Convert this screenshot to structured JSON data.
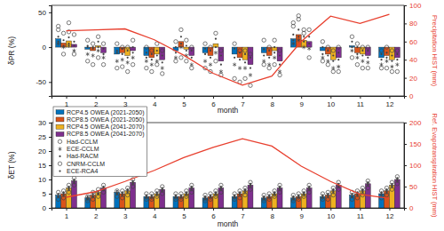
{
  "chart_data": [
    {
      "type": "bar",
      "x": [
        1,
        2,
        3,
        4,
        5,
        6,
        7,
        8,
        9,
        10,
        11,
        12
      ],
      "xlim": [
        0.5,
        12.5
      ],
      "xticks": [
        1,
        2,
        3,
        4,
        5,
        6,
        7,
        8,
        9,
        10,
        11,
        12
      ],
      "x_label": "month",
      "y_label": "δPR (%)",
      "ylim": [
        -70,
        60
      ],
      "yticks": [
        -50,
        0,
        50
      ],
      "y2_label": "Precipitation HIST (mm)",
      "y2lim": [
        0,
        100
      ],
      "y2ticks": [
        0,
        20,
        40,
        60,
        80,
        100
      ],
      "series": [
        {
          "type": "bar",
          "color": "#0072bd",
          "values": [
            12,
            -3,
            -10,
            -12,
            -5,
            -8,
            -10,
            -8,
            12,
            -5,
            2,
            -15
          ]
        },
        {
          "type": "bar",
          "color": "#d95319",
          "values": [
            6,
            -5,
            -8,
            -15,
            8,
            -12,
            -15,
            -12,
            18,
            -10,
            -8,
            -12
          ]
        },
        {
          "type": "bar",
          "color": "#edb120",
          "values": [
            9,
            2,
            -12,
            -10,
            -3,
            5,
            -18,
            -5,
            10,
            -18,
            -10,
            -18
          ]
        },
        {
          "type": "bar",
          "color": "#7e2f8e",
          "values": [
            4,
            -8,
            -5,
            -18,
            -12,
            -20,
            -25,
            -20,
            8,
            -15,
            -12,
            -15
          ]
        },
        {
          "type": "scatter",
          "marker": "circle",
          "color": "#444444",
          "values": [
            [
              25,
              10,
              5,
              0,
              8,
              5,
              5,
              10,
              30,
              8,
              15,
              -5
            ],
            [
              20,
              5,
              0,
              -5,
              25,
              0,
              -5,
              0,
              40,
              0,
              5,
              0
            ],
            [
              22,
              15,
              0,
              5,
              10,
              20,
              -5,
              10,
              25,
              -5,
              0,
              -5
            ],
            [
              18,
              5,
              10,
              -5,
              0,
              -5,
              -10,
              -5,
              25,
              0,
              0,
              -5
            ]
          ]
        },
        {
          "type": "scatter",
          "marker": "asterisk",
          "color": "#444444",
          "values": [
            [
              5,
              -10,
              -20,
              -20,
              -15,
              -20,
              -25,
              -20,
              5,
              -15,
              -5,
              -25
            ],
            [
              0,
              -12,
              -18,
              -25,
              0,
              -25,
              -30,
              -25,
              10,
              -20,
              -15,
              -20
            ],
            [
              2,
              -5,
              -22,
              -20,
              -12,
              -8,
              -30,
              -15,
              0,
              -30,
              -20,
              -28
            ],
            [
              -5,
              -15,
              -15,
              -30,
              -25,
              -35,
              -40,
              -35,
              -2,
              -28,
              -22,
              -25
            ]
          ]
        },
        {
          "type": "scatter",
          "marker": "point",
          "color": "#444444",
          "values": [
            [
              15,
              0,
              -5,
              -8,
              0,
              -2,
              -2,
              -3,
              18,
              0,
              8,
              -10
            ],
            [
              10,
              0,
              -2,
              -10,
              15,
              -5,
              -8,
              -5,
              25,
              -5,
              0,
              -8
            ],
            [
              14,
              8,
              -5,
              -5,
              2,
              12,
              -10,
              0,
              15,
              -12,
              -5,
              -12
            ],
            [
              8,
              -2,
              0,
              -12,
              -5,
              -12,
              -15,
              -12,
              15,
              -8,
              -5,
              -10
            ]
          ]
        },
        {
          "type": "scatter",
          "marker": "circle",
          "color": "#444444",
          "values": [
            [
              30,
              -20,
              -30,
              -30,
              -20,
              -30,
              -45,
              -25,
              35,
              -20,
              -15,
              -30
            ],
            [
              -10,
              -25,
              -28,
              -35,
              -15,
              -35,
              -50,
              -30,
              45,
              -25,
              -25,
              -30
            ],
            [
              35,
              -15,
              -35,
              -25,
              -20,
              -20,
              -45,
              -25,
              20,
              -35,
              -30,
              -35
            ],
            [
              -10,
              -25,
              -25,
              -38,
              -30,
              -40,
              -55,
              -40,
              -15,
              -35,
              -30,
              -35
            ]
          ]
        },
        {
          "type": "scatter",
          "marker": "point",
          "color": "#444444",
          "values": [
            [
              8,
              2,
              -8,
              -15,
              -8,
              -10,
              -15,
              -12,
              10,
              -10,
              0,
              -18
            ],
            [
              2,
              -2,
              -10,
              -18,
              5,
              -15,
              -18,
              -15,
              15,
              -12,
              -10,
              -15
            ],
            [
              5,
              0,
              -15,
              -12,
              -5,
              0,
              -22,
              -8,
              8,
              -20,
              -12,
              -20
            ],
            [
              2,
              -10,
              -8,
              -22,
              -15,
              -25,
              -30,
              -25,
              5,
              -18,
              -15,
              -18
            ]
          ]
        },
        {
          "type": "line",
          "axis": "y2",
          "color": "#e8402f",
          "line_style": "solid",
          "values": [
            72,
            73,
            74,
            62,
            45,
            25,
            12,
            22,
            60,
            88,
            80,
            90
          ]
        }
      ]
    },
    {
      "type": "bar",
      "x": [
        1,
        2,
        3,
        4,
        5,
        6,
        7,
        8,
        9,
        10,
        11,
        12
      ],
      "xlim": [
        0.5,
        12.5
      ],
      "xticks": [
        1,
        2,
        3,
        4,
        5,
        6,
        7,
        8,
        9,
        10,
        11,
        12
      ],
      "x_label": "month",
      "y_label": "δET (%)",
      "ylim": [
        0,
        30
      ],
      "yticks": [
        0,
        5,
        10,
        15,
        20,
        25,
        30
      ],
      "y2_label": "Ref. Evapotranspiration HIST (mm)",
      "y2lim": [
        0,
        200
      ],
      "y2ticks": [
        0,
        50,
        100,
        150,
        200
      ],
      "legend": "upper left",
      "series": [
        {
          "name": "RCP4.5 OWEA (2021-2050)",
          "type": "bar",
          "color": "#0072bd",
          "values": [
            4.5,
            3.5,
            5.5,
            4,
            4,
            3.5,
            4,
            3.5,
            3.5,
            4,
            4.5,
            5
          ]
        },
        {
          "name": "RCP8.5 OWEA (2021-2050)",
          "type": "bar",
          "color": "#d95319",
          "values": [
            5,
            4.5,
            5,
            4,
            4,
            4,
            5,
            4,
            4,
            4.5,
            5,
            6
          ]
        },
        {
          "name": "RCP4.5 OWEA (2041-2070)",
          "type": "bar",
          "color": "#edb120",
          "values": [
            7,
            5.5,
            6,
            5,
            5,
            5,
            6,
            5,
            5,
            6,
            6,
            8
          ]
        },
        {
          "name": "RCP8.5 OWEA (2041-2070)",
          "type": "bar",
          "color": "#7e2f8e",
          "values": [
            9.5,
            7,
            9,
            6.5,
            7,
            7,
            8,
            7,
            7,
            8,
            8.5,
            10
          ]
        },
        {
          "name": "Had-CCLM",
          "type": "scatter",
          "marker": "circle",
          "color": "#444444",
          "values": [
            [
              5.5,
              4,
              6,
              5,
              5,
              4.5,
              5,
              4.5,
              4.5,
              5,
              5.5,
              6
            ],
            [
              6,
              5.5,
              6,
              5,
              5,
              5,
              6,
              5,
              5,
              5.5,
              6,
              7
            ],
            [
              8,
              6.5,
              7,
              6,
              6,
              6,
              7,
              6,
              6,
              7,
              7,
              9
            ],
            [
              10.5,
              8,
              10,
              7.5,
              8,
              8,
              9,
              8,
              8,
              9,
              9.5,
              11
            ]
          ]
        },
        {
          "name": "ECE-CCLM",
          "type": "scatter",
          "marker": "asterisk",
          "color": "#444444",
          "values": [
            [
              4,
              3,
              5,
              3.5,
              3.5,
              3,
              3.5,
              3,
              3,
              3.5,
              4,
              4.5
            ],
            [
              4.5,
              4,
              4.5,
              3.5,
              3.5,
              3.5,
              4.5,
              3.5,
              3.5,
              4,
              4.5,
              5.5
            ],
            [
              6.5,
              5,
              5.5,
              4.5,
              4.5,
              4.5,
              5.5,
              4.5,
              4.5,
              5.5,
              5.5,
              7.5
            ],
            [
              9,
              6.5,
              8.5,
              6,
              6.5,
              6.5,
              7.5,
              6.5,
              6.5,
              7.5,
              8,
              9.5
            ]
          ]
        },
        {
          "name": "Had-RACM",
          "type": "scatter",
          "marker": "point",
          "color": "#444444",
          "values": [
            [
              5,
              4,
              6,
              4.5,
              4.5,
              4,
              4.5,
              4,
              4,
              4.5,
              5,
              5.5
            ],
            [
              5.5,
              5,
              5.5,
              4.5,
              4.5,
              4.5,
              5.5,
              4.5,
              4.5,
              5,
              5.5,
              6.5
            ],
            [
              7.5,
              6,
              6.5,
              5.5,
              5.5,
              5.5,
              6.5,
              5.5,
              5.5,
              6.5,
              6.5,
              8.5
            ],
            [
              10,
              7.5,
              9.5,
              7,
              7.5,
              7.5,
              8.5,
              7.5,
              7.5,
              8.5,
              9,
              10.5
            ]
          ]
        },
        {
          "name": "CNRM-CCLM",
          "type": "scatter",
          "marker": "circle",
          "color": "#444444",
          "values": [
            [
              3,
              2.5,
              4,
              3,
              3,
              2.5,
              3,
              2.5,
              2.5,
              3,
              3,
              3.5
            ],
            [
              3.5,
              3,
              3.5,
              3,
              3,
              3,
              3.5,
              3,
              3,
              3,
              3.5,
              4.5
            ],
            [
              5.5,
              4,
              4.5,
              4,
              4,
              4,
              4.5,
              4,
              4,
              4.5,
              4.5,
              6.5
            ],
            [
              8,
              5.5,
              7.5,
              5,
              5.5,
              5.5,
              6.5,
              5.5,
              5.5,
              6.5,
              7,
              8.5
            ]
          ]
        },
        {
          "name": "ECE-RCA4",
          "type": "scatter",
          "marker": "point",
          "color": "#444444",
          "values": [
            [
              4,
              3.5,
              5,
              4,
              4,
              3.5,
              4,
              3.5,
              3.5,
              4,
              4,
              5
            ],
            [
              5,
              4,
              5,
              4,
              4,
              4,
              5,
              4,
              4,
              4.5,
              5,
              6
            ],
            [
              7,
              5,
              6,
              5,
              5,
              5,
              6,
              5,
              5,
              6,
              6,
              8
            ],
            [
              9.5,
              7,
              9,
              6.5,
              7,
              7,
              8,
              7,
              7,
              8,
              8.5,
              10
            ]
          ]
        },
        {
          "type": "line",
          "axis": "y2",
          "color": "#e8402f",
          "line_style": "solid",
          "values": [
            25,
            38,
            62,
            88,
            118,
            142,
            162,
            145,
            98,
            62,
            32,
            22
          ]
        }
      ]
    }
  ]
}
